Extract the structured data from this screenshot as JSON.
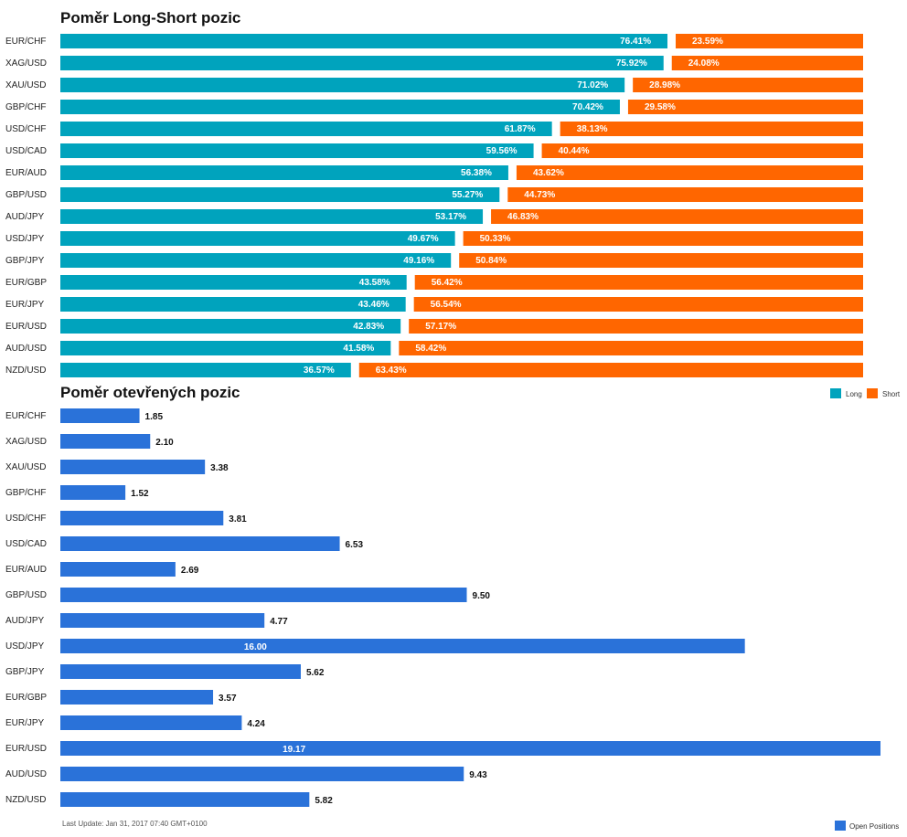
{
  "chart_data": [
    {
      "type": "bar",
      "orientation": "horizontal",
      "stacked": true,
      "title": "Poměr Long-Short pozic",
      "categories": [
        "EUR/CHF",
        "XAG/USD",
        "XAU/USD",
        "GBP/CHF",
        "USD/CHF",
        "USD/CAD",
        "EUR/AUD",
        "GBP/USD",
        "AUD/JPY",
        "USD/JPY",
        "GBP/JPY",
        "EUR/GBP",
        "EUR/JPY",
        "EUR/USD",
        "AUD/USD",
        "NZD/USD"
      ],
      "series": [
        {
          "name": "Long",
          "color": "#00a3bd",
          "values": [
            76.41,
            75.92,
            71.02,
            70.42,
            61.87,
            59.56,
            56.38,
            55.27,
            53.17,
            49.67,
            49.16,
            43.58,
            43.46,
            42.83,
            41.58,
            36.57
          ],
          "labels": [
            "76.41%",
            "75.92%",
            "71.02%",
            "70.42%",
            "61.87%",
            "59.56%",
            "56.38%",
            "55.27%",
            "53.17%",
            "49.67%",
            "49.16%",
            "43.58%",
            "43.46%",
            "42.83%",
            "41.58%",
            "36.57%"
          ]
        },
        {
          "name": "Short",
          "color": "#ff6600",
          "values": [
            23.59,
            24.08,
            28.98,
            29.58,
            38.13,
            40.44,
            43.62,
            44.73,
            46.83,
            50.33,
            50.84,
            56.42,
            56.54,
            57.17,
            58.42,
            63.43
          ],
          "labels": [
            "23.59%",
            "24.08%",
            "28.98%",
            "29.58%",
            "38.13%",
            "40.44%",
            "43.62%",
            "44.73%",
            "46.83%",
            "50.33%",
            "50.84%",
            "56.42%",
            "56.54%",
            "57.17%",
            "58.42%",
            "63.43%"
          ]
        }
      ],
      "xlim": [
        0,
        100
      ],
      "grid": false,
      "legend": "bottom-right"
    },
    {
      "type": "bar",
      "orientation": "horizontal",
      "title": "Poměr otevřených pozic",
      "categories": [
        "EUR/CHF",
        "XAG/USD",
        "XAU/USD",
        "GBP/CHF",
        "USD/CHF",
        "USD/CAD",
        "EUR/AUD",
        "GBP/USD",
        "AUD/JPY",
        "USD/JPY",
        "GBP/JPY",
        "EUR/GBP",
        "EUR/JPY",
        "EUR/USD",
        "AUD/USD",
        "NZD/USD"
      ],
      "series": [
        {
          "name": "Open Positions",
          "color": "#2a72d9",
          "values": [
            1.85,
            2.1,
            3.38,
            1.52,
            3.81,
            6.53,
            2.69,
            9.5,
            4.77,
            16.0,
            5.62,
            3.57,
            4.24,
            19.17,
            9.43,
            5.82
          ],
          "labels": [
            "1.85",
            "2.10",
            "3.38",
            "1.52",
            "3.81",
            "6.53",
            "2.69",
            "9.50",
            "4.77",
            "16.00",
            "5.62",
            "3.57",
            "4.24",
            "19.17",
            "9.43",
            "5.82"
          ]
        }
      ],
      "xlim": [
        0,
        19.17
      ],
      "grid": false,
      "legend": "bottom-right"
    }
  ],
  "footer": {
    "last_update": "Last Update: Jan 31, 2017 07:40 GMT+0100"
  }
}
